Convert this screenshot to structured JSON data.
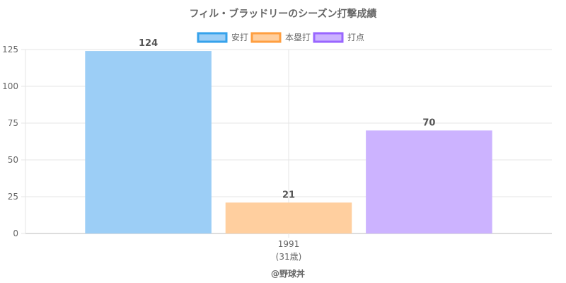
{
  "chart_data": {
    "type": "bar",
    "title": "フィル・ブラッドリーのシーズン打撃成績",
    "categories": [
      "1991"
    ],
    "category_sublabels": [
      "(31歳)"
    ],
    "series": [
      {
        "name": "安打",
        "values": [
          124
        ],
        "fill": "#9ccef6",
        "stroke": "#36a2eb"
      },
      {
        "name": "本塁打",
        "values": [
          21
        ],
        "fill": "#ffcf9f",
        "stroke": "#ff9f40"
      },
      {
        "name": "打点",
        "values": [
          70
        ],
        "fill": "#ccb3ff",
        "stroke": "#9966ff"
      }
    ],
    "ylim": [
      0,
      125
    ],
    "yticks": [
      0,
      25,
      50,
      75,
      100,
      125
    ],
    "grid": true,
    "legend_position": "top",
    "credit": "@野球丼"
  }
}
